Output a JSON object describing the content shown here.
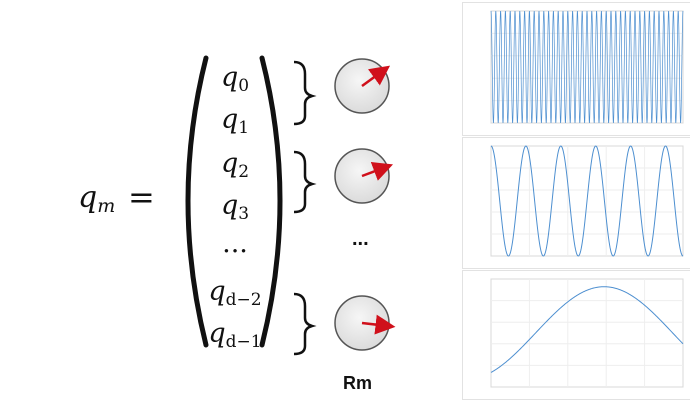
{
  "formula": {
    "lhs_base": "q",
    "lhs_sub": "m",
    "equals": "=",
    "vector": [
      {
        "base": "q",
        "sub": "0"
      },
      {
        "base": "q",
        "sub": "1"
      },
      {
        "base": "q",
        "sub": "2"
      },
      {
        "base": "q",
        "sub": "3"
      },
      {
        "base": "...",
        "sub": ""
      },
      {
        "base": "q",
        "sub": "d−2"
      },
      {
        "base": "q",
        "sub": "d−1"
      }
    ]
  },
  "rotations": {
    "gap_label": "...",
    "label": "Rm",
    "arrow_angles_deg": [
      -35,
      -20,
      8
    ]
  },
  "colors": {
    "arrow": "#d0101b",
    "dial_fill": "#ececec",
    "curve": "#4d8fd0"
  },
  "chart_data": [
    {
      "type": "line",
      "function": "cosine",
      "cycles": 40,
      "xlim": [
        0,
        1024
      ],
      "ylim": [
        -1,
        1
      ]
    },
    {
      "type": "line",
      "function": "cosine",
      "cycles": 5.5,
      "xlim": [
        0,
        1024
      ],
      "ylim": [
        -1,
        1
      ]
    },
    {
      "type": "line",
      "function": "sine",
      "cycles": 0.7,
      "xlim": [
        0,
        1024
      ],
      "ylim": [
        -0.5,
        0.9
      ]
    }
  ]
}
